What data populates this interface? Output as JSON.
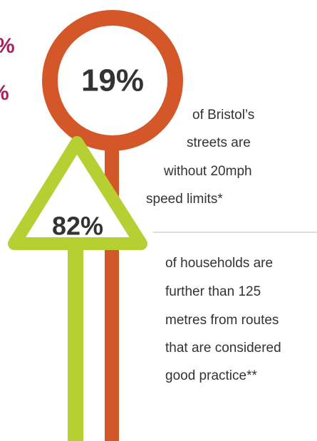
{
  "edge_labels": [
    "%",
    "%"
  ],
  "signs": [
    {
      "label": "19%"
    },
    {
      "label": "82%"
    }
  ],
  "facts": [
    {
      "lines": [
        "of Bristol’s",
        "streets are",
        "without 20mph",
        "speed limits*"
      ]
    },
    {
      "lines": [
        "of households are",
        "further than 125",
        "metres from routes",
        "that are considered",
        "good practice**"
      ]
    }
  ]
}
